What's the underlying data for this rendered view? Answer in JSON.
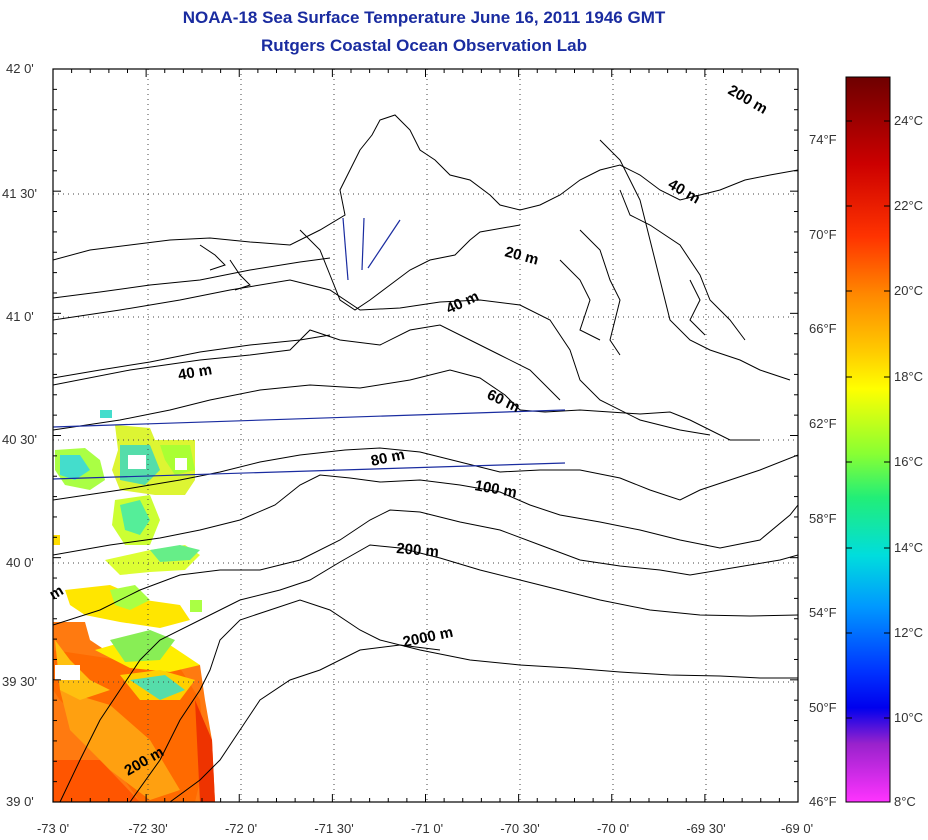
{
  "title": "NOAA-18 Sea Surface Temperature June 16, 2011 1946 GMT",
  "subtitle": "Rutgers Coastal Ocean Observation Lab",
  "map": {
    "lat_ticks": [
      "42 0'",
      "41 30'",
      "41 0'",
      "40 30'",
      "40 0'",
      "39 30'",
      "39 0'"
    ],
    "lon_ticks": [
      "-73 0'",
      "-72 30'",
      "-72 0'",
      "-71 30'",
      "-71 0'",
      "-70 30'",
      "-70 0'",
      "-69 30'",
      "-69 0'"
    ],
    "contour_labels": [
      "200 m",
      "40 m",
      "20 m",
      "40 m",
      "40 m",
      "60 m",
      "80 m",
      "100 m",
      "200 m",
      "2000 m",
      "200 m",
      "m"
    ],
    "grid": true
  },
  "colorbar": {
    "celsius_labels": [
      "24°C",
      "22°C",
      "20°C",
      "18°C",
      "16°C",
      "14°C",
      "12°C",
      "10°C",
      "8°C"
    ],
    "fahrenheit_labels": [
      "74°F",
      "70°F",
      "66°F",
      "62°F",
      "58°F",
      "54°F",
      "50°F",
      "46°F"
    ],
    "colors": [
      "#7a0000",
      "#d40000",
      "#ff4400",
      "#ff9900",
      "#ffdd00",
      "#ccff00",
      "#55ee55",
      "#00dddd",
      "#0088ff",
      "#0000ff",
      "#8800cc",
      "#ff44ff"
    ]
  }
}
